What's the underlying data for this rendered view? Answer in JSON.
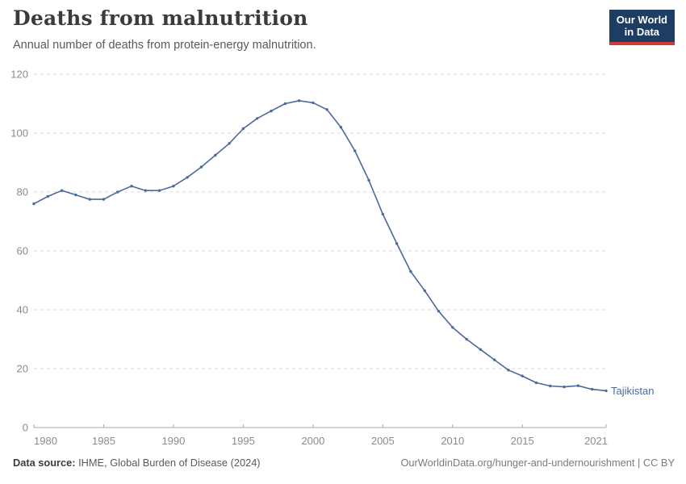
{
  "header": {
    "title": "Deaths from malnutrition",
    "subtitle": "Annual number of deaths from protein-energy malnutrition."
  },
  "logo": {
    "line1": "Our World",
    "line2": "in Data",
    "bg_color": "#1d3d63",
    "accent_color": "#d13b36"
  },
  "footer": {
    "source_label": "Data source:",
    "source_value": "IHME, Global Burden of Disease (2024)",
    "attribution": "OurWorldinData.org/hunger-and-undernourishment | CC BY"
  },
  "chart_data": {
    "type": "line",
    "title": "Deaths from malnutrition",
    "subtitle": "Annual number of deaths from protein-energy malnutrition.",
    "entity_label": "Tajikistan",
    "x": [
      1980,
      1981,
      1982,
      1983,
      1984,
      1985,
      1986,
      1987,
      1988,
      1989,
      1990,
      1991,
      1992,
      1993,
      1994,
      1995,
      1996,
      1997,
      1998,
      1999,
      2000,
      2001,
      2002,
      2003,
      2004,
      2005,
      2006,
      2007,
      2008,
      2009,
      2010,
      2011,
      2012,
      2013,
      2014,
      2015,
      2016,
      2017,
      2018,
      2019,
      2020,
      2021
    ],
    "series": [
      {
        "name": "Tajikistan",
        "color": "#4C6A9C",
        "values": [
          76,
          78.5,
          80.5,
          79,
          77.5,
          77.5,
          80,
          82,
          80.5,
          80.5,
          82,
          85,
          88.5,
          92.5,
          96.5,
          101.5,
          105,
          107.5,
          110,
          111,
          110.3,
          108,
          102,
          94,
          84,
          72.5,
          62.5,
          53,
          46.5,
          39.5,
          34,
          30,
          26.5,
          23,
          19.5,
          17.5,
          15.2,
          14.1,
          13.8,
          14.2,
          13,
          12.5
        ]
      }
    ],
    "xlabel": "",
    "ylabel": "",
    "xlim": [
      1980,
      2021
    ],
    "ylim": [
      0,
      120
    ],
    "yticks": [
      0,
      20,
      40,
      60,
      80,
      100,
      120
    ],
    "xticks": [
      1980,
      1985,
      1990,
      1995,
      2000,
      2005,
      2010,
      2015,
      2021
    ],
    "grid": "horizontal-dashed",
    "legend": "line-end-label",
    "colors": {
      "line": "#4C6A9C",
      "entity_label": "#4C6A9C",
      "gridline": "#dadada",
      "axis_line": "#a9a9a9",
      "tick_label": "#8b8b8b"
    }
  }
}
